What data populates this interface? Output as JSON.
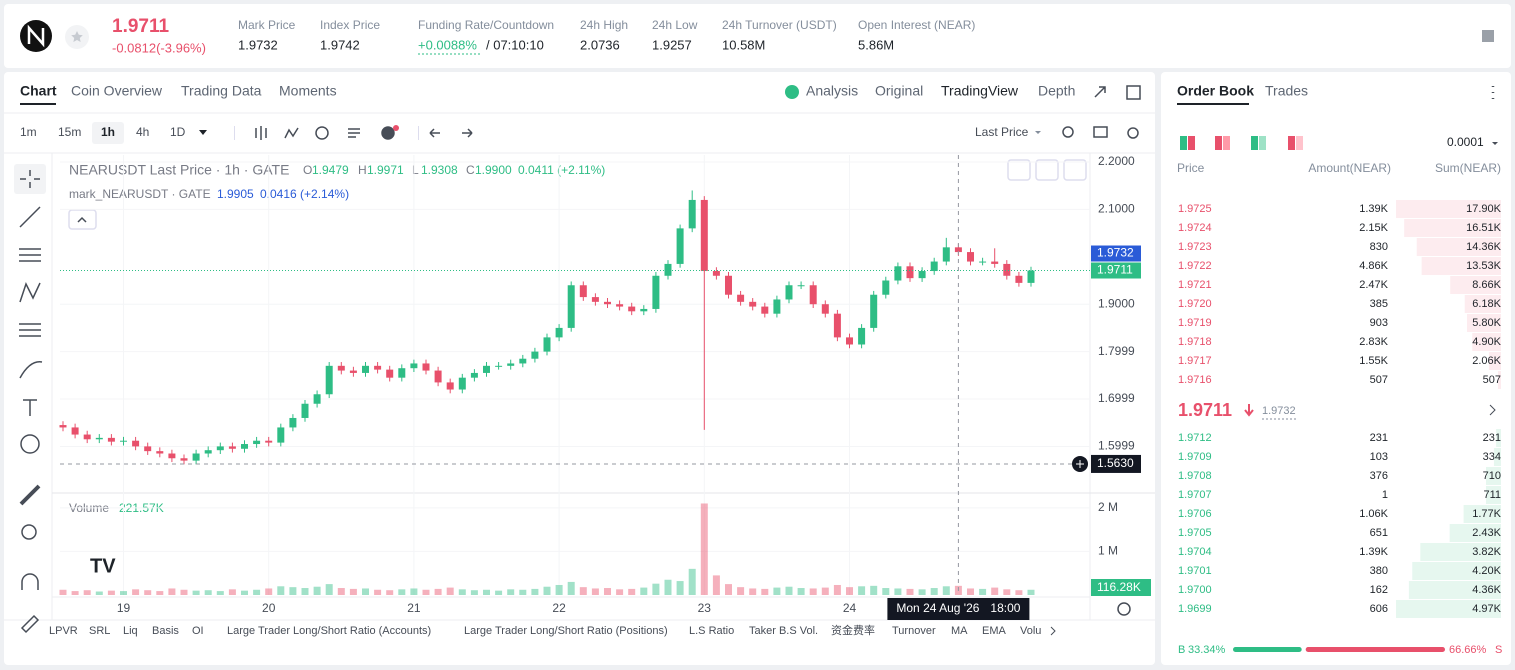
{
  "header": {
    "price": "1.9711",
    "change": "-0.0812(-3.96%)",
    "stats": [
      {
        "label": "Mark Price",
        "value": "1.9732"
      },
      {
        "label": "Index Price",
        "value": "1.9742"
      },
      {
        "label": "Funding Rate/Countdown",
        "value": "+0.0088%",
        "extra": "/ 07:10:10"
      },
      {
        "label": "24h High",
        "value": "2.0736"
      },
      {
        "label": "24h Low",
        "value": "1.9257"
      },
      {
        "label": "24h Turnover (USDT)",
        "value": "10.58M"
      },
      {
        "label": "Open Interest (NEAR)",
        "value": "5.86M"
      }
    ]
  },
  "tabs": [
    "Chart",
    "Coin Overview",
    "Trading Data",
    "Moments"
  ],
  "views": [
    "Analysis",
    "Original",
    "TradingView",
    "Depth"
  ],
  "intervals": [
    "1m",
    "15m",
    "1h",
    "4h",
    "1D"
  ],
  "price_source": "Last Price",
  "legend": {
    "main": "NEARUSDT Last Price · 1h · GATE",
    "ohlc": [
      {
        "k": "O",
        "v": "1.9479"
      },
      {
        "k": "H",
        "v": "1.9971"
      },
      {
        "k": "L",
        "v": "1.9308"
      },
      {
        "k": "C",
        "v": "1.9900"
      }
    ],
    "change": "0.0411 (+2.11%)",
    "mark": "mark_NEARUSDT · GATE",
    "mark_value": "1.9905",
    "mark_change": "0.0416 (+2.14%)",
    "volume": "Volume",
    "volume_value": "221.57K"
  },
  "indicators": [
    "LPVR",
    "SRL",
    "Liq",
    "Basis",
    "OI",
    "Large Trader Long/Short Ratio (Accounts)",
    "Large Trader Long/Short Ratio (Positions)",
    "L.S Ratio",
    "Taker B.S Vol.",
    "资金费率",
    "Turnover",
    "MA",
    "EMA",
    "Volu"
  ],
  "chart_data": {
    "type": "candlestick",
    "up_color": "#2ebd85",
    "down_color": "#e8506b",
    "open": [
      1.645,
      1.64,
      1.625,
      1.615,
      1.618,
      1.61,
      1.612,
      1.6,
      1.59,
      1.585,
      1.575,
      1.57,
      1.585,
      1.592,
      1.6,
      1.595,
      1.605,
      1.612,
      1.608,
      1.64,
      1.66,
      1.69,
      1.71,
      1.77,
      1.76,
      1.755,
      1.77,
      1.762,
      1.745,
      1.765,
      1.775,
      1.76,
      1.735,
      1.72,
      1.745,
      1.755,
      1.77,
      1.77,
      1.775,
      1.785,
      1.8,
      1.83,
      1.85,
      1.94,
      1.915,
      1.905,
      1.9,
      1.895,
      1.885,
      1.89,
      1.96,
      1.985,
      2.06,
      2.12,
      1.97,
      1.96,
      1.92,
      1.905,
      1.895,
      1.88,
      1.91,
      1.94,
      1.94,
      1.9,
      1.88,
      1.83,
      1.815,
      1.85,
      1.92,
      1.95,
      1.98,
      1.955,
      1.97,
      1.99,
      2.02,
      2.01,
      1.99,
      1.99,
      1.985,
      1.96,
      1.945
    ],
    "high": [
      1.653,
      1.648,
      1.633,
      1.626,
      1.626,
      1.62,
      1.62,
      1.608,
      1.598,
      1.593,
      1.583,
      1.593,
      1.6,
      1.608,
      1.608,
      1.613,
      1.62,
      1.62,
      1.648,
      1.668,
      1.698,
      1.718,
      1.778,
      1.778,
      1.768,
      1.778,
      1.778,
      1.77,
      1.773,
      1.783,
      1.783,
      1.768,
      1.743,
      1.753,
      1.763,
      1.778,
      1.778,
      1.783,
      1.793,
      1.808,
      1.838,
      1.858,
      1.948,
      1.948,
      1.923,
      1.913,
      1.908,
      1.903,
      1.898,
      1.968,
      1.993,
      2.068,
      2.14,
      2.128,
      1.978,
      1.968,
      1.928,
      1.913,
      1.903,
      1.918,
      1.948,
      1.948,
      1.948,
      1.908,
      1.888,
      1.838,
      1.858,
      1.928,
      1.958,
      1.988,
      1.988,
      1.978,
      1.998,
      2.04,
      2.028,
      2.018,
      1.998,
      2.018,
      1.993,
      1.968,
      1.979
    ],
    "low": [
      1.632,
      1.617,
      1.607,
      1.607,
      1.602,
      1.602,
      1.592,
      1.582,
      1.577,
      1.567,
      1.562,
      1.562,
      1.577,
      1.584,
      1.587,
      1.587,
      1.597,
      1.6,
      1.6,
      1.632,
      1.652,
      1.682,
      1.702,
      1.752,
      1.747,
      1.747,
      1.754,
      1.737,
      1.737,
      1.757,
      1.752,
      1.727,
      1.712,
      1.712,
      1.737,
      1.747,
      1.762,
      1.762,
      1.767,
      1.777,
      1.792,
      1.822,
      1.842,
      1.907,
      1.897,
      1.892,
      1.887,
      1.877,
      1.877,
      1.882,
      1.952,
      1.977,
      2.052,
      1.635,
      1.952,
      1.912,
      1.897,
      1.887,
      1.872,
      1.872,
      1.902,
      1.932,
      1.892,
      1.872,
      1.822,
      1.807,
      1.807,
      1.842,
      1.912,
      1.942,
      1.947,
      1.947,
      1.962,
      1.982,
      2.002,
      1.982,
      1.982,
      1.977,
      1.952,
      1.937,
      1.937
    ],
    "close": [
      1.64,
      1.625,
      1.615,
      1.618,
      1.61,
      1.612,
      1.6,
      1.59,
      1.585,
      1.575,
      1.57,
      1.585,
      1.592,
      1.6,
      1.595,
      1.605,
      1.612,
      1.608,
      1.64,
      1.66,
      1.69,
      1.71,
      1.77,
      1.76,
      1.755,
      1.77,
      1.762,
      1.745,
      1.765,
      1.775,
      1.76,
      1.735,
      1.72,
      1.745,
      1.755,
      1.77,
      1.77,
      1.775,
      1.785,
      1.8,
      1.83,
      1.85,
      1.94,
      1.915,
      1.905,
      1.9,
      1.895,
      1.885,
      1.89,
      1.96,
      1.985,
      2.06,
      2.12,
      1.97,
      1.96,
      1.92,
      1.905,
      1.895,
      1.88,
      1.91,
      1.94,
      1.94,
      1.9,
      1.88,
      1.83,
      1.815,
      1.85,
      1.92,
      1.95,
      1.98,
      1.955,
      1.97,
      1.99,
      2.02,
      2.01,
      1.99,
      1.99,
      1.985,
      1.96,
      1.945,
      1.971
    ],
    "volume": [
      120000,
      90000,
      110000,
      80000,
      100000,
      90000,
      130000,
      110000,
      90000,
      150000,
      120000,
      100000,
      110000,
      90000,
      130000,
      100000,
      120000,
      150000,
      200000,
      180000,
      160000,
      190000,
      250000,
      160000,
      140000,
      150000,
      120000,
      110000,
      130000,
      150000,
      120000,
      140000,
      170000,
      130000,
      110000,
      120000,
      100000,
      130000,
      120000,
      140000,
      190000,
      230000,
      300000,
      180000,
      150000,
      160000,
      130000,
      140000,
      170000,
      260000,
      350000,
      320000,
      600000,
      2100000,
      450000,
      250000,
      180000,
      150000,
      140000,
      170000,
      190000,
      160000,
      150000,
      170000,
      230000,
      180000,
      200000,
      210000,
      160000,
      150000,
      140000,
      130000,
      160000,
      200000,
      210000,
      150000,
      140000,
      170000,
      130000,
      110000,
      120000
    ],
    "xticks": [
      {
        "value": 5,
        "label": "19"
      },
      {
        "value": 17,
        "label": "20"
      },
      {
        "value": 29,
        "label": "21"
      },
      {
        "value": 41,
        "label": "22"
      },
      {
        "value": 53,
        "label": "23"
      },
      {
        "value": 65,
        "label": "24"
      }
    ],
    "ylim": [
      1.5038,
      2.2148
    ],
    "yticks": [
      {
        "value": 2.2,
        "label": "2.2000"
      },
      {
        "value": 2.1,
        "label": "2.1000"
      },
      {
        "value": 1.9,
        "label": "1.9000"
      },
      {
        "value": 1.7999,
        "label": "1.7999"
      },
      {
        "value": 1.6999,
        "label": "1.6999"
      },
      {
        "value": 1.5999,
        "label": "1.5999"
      }
    ],
    "vlim": [
      0,
      2180000
    ],
    "vticks": [
      {
        "value": 2000000,
        "label": "2 M"
      },
      {
        "value": 1000000,
        "label": "1 M"
      }
    ],
    "price_tags": [
      {
        "value": 1.9732,
        "label": "1.9732",
        "color": "#2a5bd7"
      },
      {
        "value": 1.9711,
        "label": "1.9711",
        "color": "#2ebd85"
      }
    ],
    "crosshair": {
      "x": 74,
      "price": {
        "value": 1.563,
        "label": "1.5630"
      },
      "date": "Mon 24 Aug '26",
      "time": "18:00",
      "volume": "116.28K"
    }
  },
  "order_book": {
    "tabs": [
      "Order Book",
      "Trades"
    ],
    "precision": "0.0001",
    "columns": [
      "Price",
      "Amount(NEAR)",
      "Sum(NEAR)"
    ],
    "asks": [
      [
        "1.9725",
        "1.39K",
        "17.90K"
      ],
      [
        "1.9724",
        "2.15K",
        "16.51K"
      ],
      [
        "1.9723",
        "830",
        "14.36K"
      ],
      [
        "1.9722",
        "4.86K",
        "13.53K"
      ],
      [
        "1.9721",
        "2.47K",
        "8.66K"
      ],
      [
        "1.9720",
        "385",
        "6.18K"
      ],
      [
        "1.9719",
        "903",
        "5.80K"
      ],
      [
        "1.9718",
        "2.83K",
        "4.90K"
      ],
      [
        "1.9717",
        "1.55K",
        "2.06K"
      ],
      [
        "1.9716",
        "507",
        "507"
      ]
    ],
    "last": "1.9711",
    "mark": "1.9732",
    "bids": [
      [
        "1.9712",
        "231",
        "231"
      ],
      [
        "1.9709",
        "103",
        "334"
      ],
      [
        "1.9708",
        "376",
        "710"
      ],
      [
        "1.9707",
        "1",
        "711"
      ],
      [
        "1.9706",
        "1.06K",
        "1.77K"
      ],
      [
        "1.9705",
        "651",
        "2.43K"
      ],
      [
        "1.9704",
        "1.39K",
        "3.82K"
      ],
      [
        "1.9701",
        "380",
        "4.20K"
      ],
      [
        "1.9700",
        "162",
        "4.36K"
      ],
      [
        "1.9699",
        "606",
        "4.97K"
      ]
    ],
    "buy": {
      "letter": "B",
      "value": 33.34,
      "label": "33.34%"
    },
    "sell": {
      "letter": "S",
      "value": 66.66,
      "label": "66.66%"
    }
  }
}
